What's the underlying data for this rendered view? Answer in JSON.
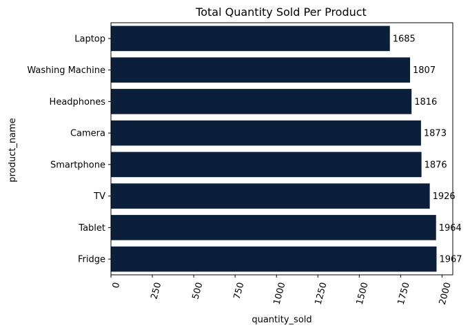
{
  "chart_data": {
    "type": "bar",
    "orientation": "horizontal",
    "title": "Total Quantity Sold Per Product",
    "xlabel": "quantity_sold",
    "ylabel": "product_name",
    "categories": [
      "Laptop",
      "Washing Machine",
      "Headphones",
      "Camera",
      "Smartphone",
      "TV",
      "Tablet",
      "Fridge"
    ],
    "values": [
      1685,
      1807,
      1816,
      1873,
      1876,
      1926,
      1964,
      1967
    ],
    "data_labels": [
      "1685",
      "1807",
      "1816",
      "1873",
      "1876",
      "1926",
      "1964",
      "1967"
    ],
    "x_ticks": [
      0,
      250,
      500,
      750,
      1000,
      1250,
      1500,
      1750,
      2000
    ],
    "x_tick_labels": [
      "0",
      "250",
      "500",
      "750",
      "1000",
      "1250",
      "1500",
      "1750",
      "2000"
    ],
    "xlim": [
      0,
      2065
    ],
    "grid": false,
    "legend": "none",
    "bar_color": "#0b1f3a"
  }
}
